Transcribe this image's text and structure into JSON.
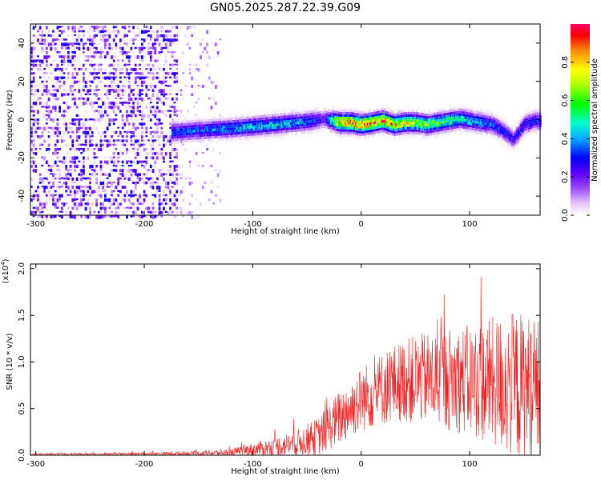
{
  "title": "GN05.2025.287.22.39.G09",
  "chart_data": [
    {
      "type": "heatmap",
      "name": "spectrogram",
      "xlabel": "Height of straight line (km)",
      "ylabel": "Frequency (Hz)",
      "xlim": [
        -305,
        165
      ],
      "ylim": [
        -50,
        50
      ],
      "xticks": [
        -300,
        -200,
        -100,
        0,
        100
      ],
      "yticks": [
        40,
        20,
        0,
        -20,
        -40
      ],
      "colorbar": {
        "label": "Normalized spectral amplitude",
        "range": [
          0.0,
          1.0
        ],
        "ticks": [
          0.0,
          0.2,
          0.4,
          0.6,
          0.8
        ],
        "tick_labels": [
          "0.0",
          "0.2",
          "0.4",
          "0.6",
          "0.8"
        ]
      },
      "ridge": {
        "x": [
          -175,
          -150,
          -120,
          -100,
          -80,
          -60,
          -45,
          -35,
          -20,
          -10,
          0,
          10,
          20,
          30,
          40,
          50,
          60,
          70,
          80,
          90,
          100,
          110,
          120,
          130,
          140,
          150,
          160
        ],
        "freq": [
          -6,
          -5,
          -4,
          -3,
          -2,
          -1,
          0,
          1,
          -1,
          -1,
          -2,
          -1,
          0,
          -2,
          -1,
          -1,
          -2,
          -1,
          0,
          1,
          0,
          -1,
          -2,
          -5,
          -10,
          -2,
          0
        ],
        "amplitude": [
          0.35,
          0.35,
          0.4,
          0.45,
          0.45,
          0.4,
          0.35,
          0.2,
          0.85,
          0.9,
          0.9,
          0.85,
          0.9,
          0.8,
          0.75,
          0.7,
          0.65,
          0.6,
          0.55,
          0.5,
          0.45,
          0.4,
          0.35,
          0.3,
          0.25,
          0.3,
          0.3
        ]
      },
      "noise_region_x": [
        -305,
        -130
      ]
    },
    {
      "type": "line",
      "name": "snr",
      "xlabel": "Height of straight line (km)",
      "ylabel": "SNR (10 * v/v)",
      "y_scale_label": "(x10",
      "y_scale_exp": "4",
      "y_scale_suffix": ")",
      "xlim": [
        -305,
        165
      ],
      "ylim": [
        0,
        2.05
      ],
      "xticks": [
        -300,
        -200,
        -100,
        0,
        100
      ],
      "yticks": [
        0.0,
        0.5,
        1.0,
        1.5,
        2.0
      ],
      "ytick_labels": [
        "0.0",
        "0.5",
        "1.0",
        "1.5",
        "2.0"
      ],
      "color": "#ee2222",
      "envelope": {
        "x": [
          -305,
          -250,
          -200,
          -150,
          -120,
          -100,
          -80,
          -60,
          -40,
          -20,
          0,
          20,
          40,
          60,
          80,
          100,
          120,
          140,
          165
        ],
        "mean": [
          0.01,
          0.012,
          0.015,
          0.02,
          0.03,
          0.06,
          0.09,
          0.13,
          0.2,
          0.4,
          0.6,
          0.72,
          0.8,
          0.82,
          0.82,
          0.8,
          0.78,
          0.75,
          0.7
        ],
        "spread": [
          0.01,
          0.012,
          0.015,
          0.025,
          0.04,
          0.07,
          0.1,
          0.14,
          0.2,
          0.3,
          0.35,
          0.4,
          0.45,
          0.5,
          0.55,
          0.6,
          0.7,
          0.8,
          0.8
        ]
      }
    }
  ]
}
